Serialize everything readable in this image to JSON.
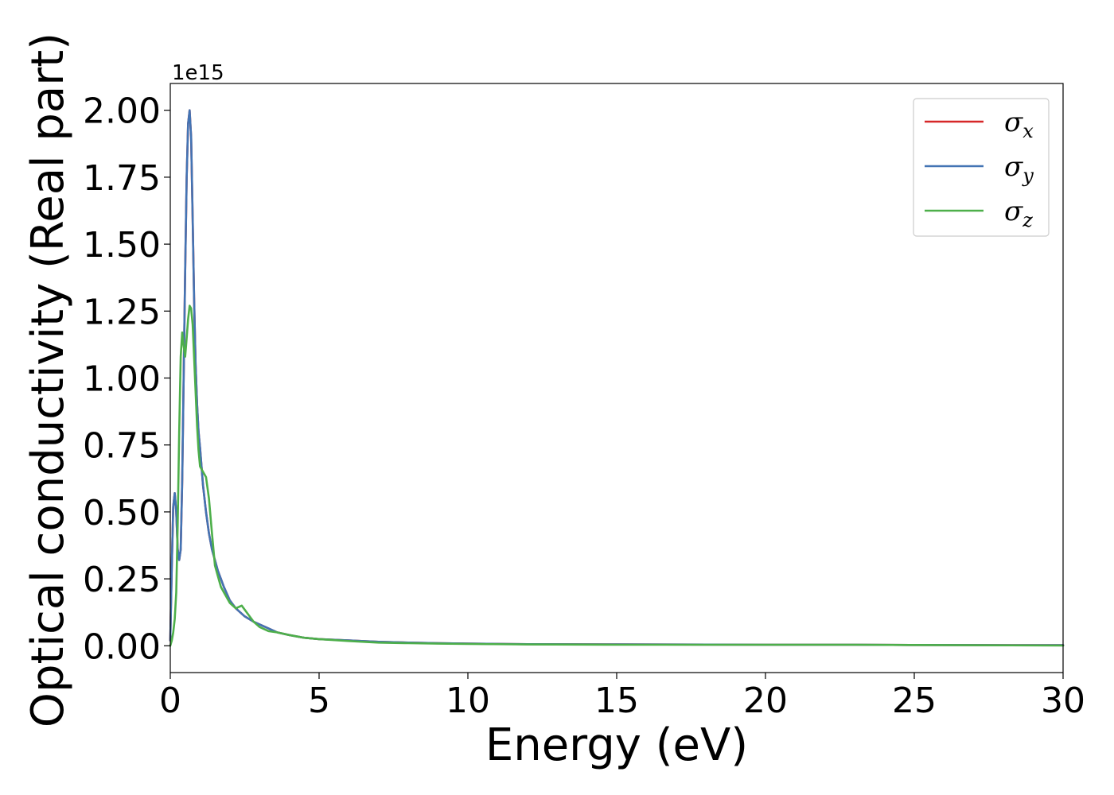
{
  "chart_data": {
    "type": "line",
    "title": "",
    "xlabel": "Energy (eV)",
    "ylabel": "Optical conductivity (Real part)",
    "y_offset_label": "1e15",
    "y_scale": 1000000000000000.0,
    "xlim": [
      0,
      30
    ],
    "ylim": [
      -0.1,
      2.1
    ],
    "xticks": [
      0,
      5,
      10,
      15,
      20,
      25,
      30
    ],
    "xtick_labels": [
      "0",
      "5",
      "10",
      "15",
      "20",
      "25",
      "30"
    ],
    "yticks": [
      0,
      0.25,
      0.5,
      0.75,
      1.0,
      1.25,
      1.5,
      1.75,
      2.0
    ],
    "ytick_labels": [
      "0.00",
      "0.25",
      "0.50",
      "0.75",
      "1.00",
      "1.25",
      "1.50",
      "1.75",
      "2.00"
    ],
    "grid": false,
    "legend_position": "top-right",
    "series": [
      {
        "name": "σx",
        "symbol": "σ",
        "subscript": "x",
        "color": "#d62728",
        "x": [
          0,
          0.05,
          0.1,
          0.15,
          0.2,
          0.25,
          0.3,
          0.35,
          0.4,
          0.45,
          0.5,
          0.55,
          0.6,
          0.65,
          0.7,
          0.75,
          0.8,
          0.85,
          0.9,
          0.95,
          1.0,
          1.1,
          1.2,
          1.3,
          1.4,
          1.5,
          1.6,
          1.7,
          1.8,
          2.0,
          2.2,
          2.5,
          2.8,
          3.0,
          3.3,
          3.6,
          4.0,
          4.5,
          5,
          6,
          7,
          8,
          9,
          10,
          12,
          15,
          20,
          23,
          25,
          30
        ],
        "y": [
          0.02,
          0.3,
          0.52,
          0.57,
          0.5,
          0.36,
          0.32,
          0.36,
          0.62,
          1.0,
          1.4,
          1.75,
          1.95,
          2.0,
          1.9,
          1.6,
          1.3,
          1.05,
          0.9,
          0.8,
          0.74,
          0.6,
          0.5,
          0.42,
          0.36,
          0.32,
          0.28,
          0.25,
          0.22,
          0.17,
          0.14,
          0.11,
          0.09,
          0.08,
          0.065,
          0.05,
          0.04,
          0.03,
          0.025,
          0.02,
          0.015,
          0.012,
          0.01,
          0.008,
          0.006,
          0.005,
          0.004,
          0.004,
          0.003,
          0.002
        ]
      },
      {
        "name": "σy",
        "symbol": "σ",
        "subscript": "y",
        "color": "#4374b4",
        "x": [
          0,
          0.05,
          0.1,
          0.15,
          0.2,
          0.25,
          0.3,
          0.35,
          0.4,
          0.45,
          0.5,
          0.55,
          0.6,
          0.65,
          0.7,
          0.75,
          0.8,
          0.85,
          0.9,
          0.95,
          1.0,
          1.1,
          1.2,
          1.3,
          1.4,
          1.5,
          1.6,
          1.7,
          1.8,
          2.0,
          2.2,
          2.5,
          2.8,
          3.0,
          3.3,
          3.6,
          4.0,
          4.5,
          5,
          6,
          7,
          8,
          9,
          10,
          12,
          15,
          20,
          23,
          25,
          30
        ],
        "y": [
          0.02,
          0.3,
          0.52,
          0.57,
          0.5,
          0.36,
          0.32,
          0.36,
          0.62,
          1.0,
          1.4,
          1.75,
          1.95,
          2.0,
          1.9,
          1.6,
          1.3,
          1.05,
          0.9,
          0.8,
          0.74,
          0.6,
          0.5,
          0.42,
          0.36,
          0.32,
          0.28,
          0.25,
          0.22,
          0.17,
          0.14,
          0.11,
          0.09,
          0.08,
          0.065,
          0.05,
          0.04,
          0.03,
          0.025,
          0.02,
          0.015,
          0.012,
          0.01,
          0.008,
          0.006,
          0.005,
          0.004,
          0.004,
          0.003,
          0.002
        ]
      },
      {
        "name": "σz",
        "symbol": "σ",
        "subscript": "z",
        "color": "#4daf4a",
        "x": [
          0,
          0.05,
          0.1,
          0.15,
          0.2,
          0.25,
          0.3,
          0.35,
          0.4,
          0.45,
          0.5,
          0.55,
          0.6,
          0.65,
          0.7,
          0.75,
          0.8,
          0.85,
          0.9,
          0.95,
          1.0,
          1.1,
          1.2,
          1.3,
          1.4,
          1.5,
          1.6,
          1.7,
          1.8,
          2.0,
          2.2,
          2.4,
          2.6,
          2.8,
          3.0,
          3.3,
          3.6,
          4.0,
          4.5,
          5,
          6,
          7,
          8,
          9,
          10,
          12,
          15,
          20,
          23,
          25,
          30
        ],
        "y": [
          0.0,
          0.02,
          0.05,
          0.1,
          0.2,
          0.45,
          0.8,
          1.08,
          1.17,
          1.12,
          1.08,
          1.15,
          1.22,
          1.27,
          1.26,
          1.2,
          1.08,
          0.95,
          0.82,
          0.73,
          0.67,
          0.65,
          0.63,
          0.55,
          0.42,
          0.3,
          0.26,
          0.22,
          0.2,
          0.16,
          0.14,
          0.15,
          0.12,
          0.09,
          0.07,
          0.055,
          0.05,
          0.04,
          0.03,
          0.025,
          0.018,
          0.012,
          0.01,
          0.008,
          0.007,
          0.005,
          0.004,
          0.004,
          0.004,
          0.003,
          0.001
        ]
      }
    ]
  }
}
